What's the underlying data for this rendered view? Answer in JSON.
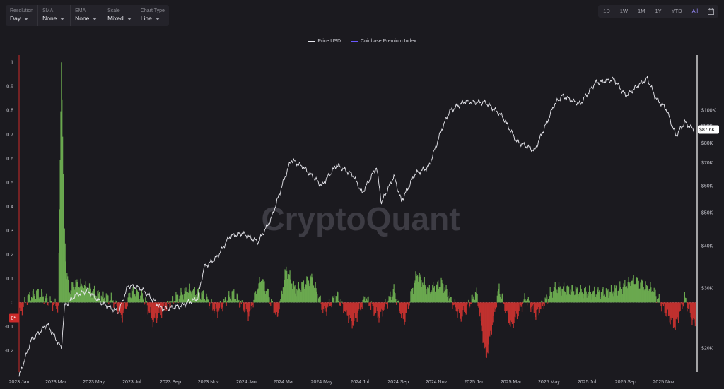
{
  "toolbar": {
    "resolution": {
      "label": "Resolution",
      "value": "Day"
    },
    "sma": {
      "label": "SMA",
      "value": "None"
    },
    "ema": {
      "label": "EMA",
      "value": "None"
    },
    "scale": {
      "label": "Scale",
      "value": "Mixed"
    },
    "chart_type": {
      "label": "Chart Type",
      "value": "Line"
    }
  },
  "ranges": [
    "1D",
    "1W",
    "1M",
    "1Y",
    "YTD",
    "All"
  ],
  "active_range": "All",
  "watermark": "CryptoQuant",
  "price_badge": "$87.6K",
  "zero_badge": "0*",
  "colors": {
    "price": "#e8e8ee",
    "index": "#6a58ff",
    "positive": "#6aa84f",
    "negative": "#c0312f",
    "axis_right": "#ffffff",
    "axis_left": "#cc2a2a"
  },
  "chart_data": {
    "type": "line",
    "series": [
      {
        "name": "Price USD",
        "axis": "right",
        "scale": "log",
        "x": [
          "2023-01-01",
          "2023-01-20",
          "2023-02-15",
          "2023-03-10",
          "2023-03-15",
          "2023-04-01",
          "2023-04-20",
          "2023-05-15",
          "2023-06-10",
          "2023-06-25",
          "2023-07-15",
          "2023-08-20",
          "2023-09-15",
          "2023-10-15",
          "2023-10-25",
          "2023-11-15",
          "2023-12-05",
          "2023-12-25",
          "2024-01-20",
          "2024-02-10",
          "2024-03-01",
          "2024-03-13",
          "2024-04-01",
          "2024-05-01",
          "2024-05-25",
          "2024-06-20",
          "2024-07-05",
          "2024-07-28",
          "2024-08-05",
          "2024-08-25",
          "2024-09-06",
          "2024-09-28",
          "2024-10-20",
          "2024-11-10",
          "2024-11-22",
          "2024-12-17",
          "2025-01-20",
          "2025-02-15",
          "2025-03-10",
          "2025-04-08",
          "2025-05-10",
          "2025-05-22",
          "2025-06-20",
          "2025-07-14",
          "2025-08-14",
          "2025-09-01",
          "2025-10-06",
          "2025-10-20",
          "2025-11-05",
          "2025-11-21",
          "2025-12-05",
          "2025-12-20"
        ],
        "values": [
          16500,
          21000,
          23500,
          20000,
          26500,
          28500,
          29500,
          27000,
          25500,
          30500,
          30000,
          26000,
          26500,
          28000,
          34500,
          37000,
          42500,
          43500,
          41000,
          48000,
          62000,
          71500,
          68000,
          60000,
          69000,
          64500,
          57000,
          68000,
          53500,
          64000,
          54000,
          65000,
          68000,
          88000,
          99000,
          106000,
          105000,
          96000,
          81000,
          76000,
          104000,
          110000,
          104000,
          120000,
          123000,
          110000,
          124000,
          108000,
          101000,
          84000,
          92000,
          87600
        ]
      },
      {
        "name": "Coinbase Premium Index",
        "axis": "left",
        "x": [
          "2023-01-01",
          "2023-01-15",
          "2023-02-01",
          "2023-02-20",
          "2023-03-05",
          "2023-03-10",
          "2023-03-14",
          "2023-03-18",
          "2023-03-24",
          "2023-04-01",
          "2023-04-20",
          "2023-05-10",
          "2023-06-01",
          "2023-06-15",
          "2023-07-01",
          "2023-07-20",
          "2023-08-05",
          "2023-08-20",
          "2023-09-10",
          "2023-10-01",
          "2023-10-24",
          "2023-11-15",
          "2023-12-10",
          "2024-01-05",
          "2024-01-25",
          "2024-02-20",
          "2024-03-05",
          "2024-03-20",
          "2024-04-15",
          "2024-05-05",
          "2024-05-25",
          "2024-06-20",
          "2024-07-10",
          "2024-08-01",
          "2024-08-25",
          "2024-09-10",
          "2024-10-01",
          "2024-10-20",
          "2024-11-10",
          "2024-12-10",
          "2025-01-05",
          "2025-01-20",
          "2025-02-10",
          "2025-03-01",
          "2025-03-25",
          "2025-04-10",
          "2025-05-10",
          "2025-06-10",
          "2025-07-10",
          "2025-08-01",
          "2025-08-25",
          "2025-09-15",
          "2025-10-15",
          "2025-11-05",
          "2025-11-20",
          "2025-12-05",
          "2025-12-20"
        ],
        "values": [
          -0.05,
          0.02,
          0.04,
          0.0,
          -0.02,
          1.0,
          0.38,
          0.12,
          0.05,
          0.08,
          0.06,
          0.03,
          0.01,
          -0.06,
          0.05,
          0.02,
          -0.08,
          -0.03,
          0.02,
          0.05,
          0.03,
          -0.04,
          0.04,
          -0.05,
          0.1,
          -0.06,
          0.14,
          0.05,
          0.1,
          -0.04,
          0.03,
          -0.09,
          0.02,
          -0.06,
          0.05,
          -0.08,
          0.12,
          0.05,
          0.08,
          -0.06,
          0.04,
          -0.23,
          0.06,
          -0.1,
          0.02,
          -0.05,
          0.06,
          0.05,
          0.04,
          0.04,
          0.06,
          0.09,
          0.05,
          -0.04,
          -0.1,
          0.02,
          -0.09
        ]
      }
    ],
    "x_ticks": [
      "2023 Jan",
      "2023 Mar",
      "2023 May",
      "2023 Jul",
      "2023 Sep",
      "2023 Nov",
      "2024 Jan",
      "2024 Mar",
      "2024 May",
      "2024 Jul",
      "2024 Sep",
      "2024 Nov",
      "2025 Jan",
      "2025 Mar",
      "2025 May",
      "2025 Jul",
      "2025 Sep",
      "2025 Nov"
    ],
    "left_ticks": [
      "1",
      "0.9",
      "0.8",
      "0.7",
      "0.6",
      "0.5",
      "0.4",
      "0.3",
      "0.2",
      "0.1",
      "0",
      "-0.1",
      "-0.2"
    ],
    "right_ticks": [
      "$100K",
      "$90K",
      "$80K",
      "$70K",
      "$60K",
      "$50K",
      "$40K",
      "$30K",
      "$20K"
    ],
    "left_ylim": [
      -0.29,
      1.03
    ],
    "grid": false,
    "legend": "top-center"
  }
}
